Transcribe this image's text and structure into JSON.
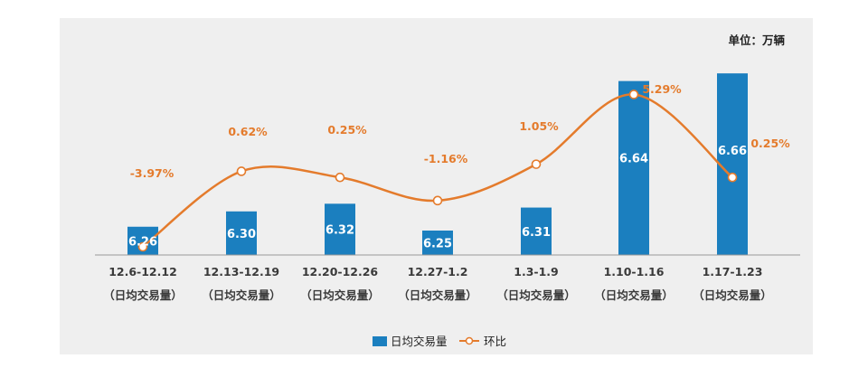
{
  "chart_data": {
    "type": "bar",
    "unit_label": "单位：万辆",
    "categories": [
      "12.6-12.12",
      "12.13-12.19",
      "12.20-12.26",
      "12.27-1.2",
      "1.3-1.9",
      "1.10-1.16",
      "1.17-1.23"
    ],
    "category_sublabel": "（日均交易量）",
    "series": [
      {
        "name": "日均交易量",
        "type": "bar",
        "color": "#1b7fbf",
        "values": [
          6.26,
          6.3,
          6.32,
          6.25,
          6.31,
          6.64,
          6.66
        ],
        "labels": [
          "6.26",
          "6.30",
          "6.32",
          "6.25",
          "6.31",
          "6.64",
          "6.66"
        ]
      },
      {
        "name": "环比",
        "type": "line",
        "color": "#e47b2c",
        "values": [
          -3.97,
          0.62,
          0.25,
          -1.16,
          1.05,
          5.29,
          0.25
        ],
        "labels": [
          "-3.97%",
          "0.62%",
          "0.25%",
          "-1.16%",
          "1.05%",
          "5.29%",
          "0.25%"
        ]
      }
    ],
    "legend_position": "bottom",
    "grid": false
  }
}
